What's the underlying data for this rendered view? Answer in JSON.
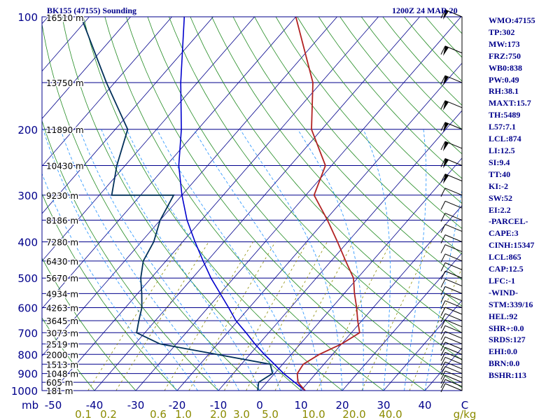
{
  "header": {
    "title_left": "BK155 (47155) Sounding",
    "title_right": "1200Z 24 MAR 20"
  },
  "params": [
    "WMO:47155",
    "TP:302",
    "MW:173",
    "FRZ:750",
    "WB0:838",
    "PW:0.49",
    "RH:38.1",
    "MAXT:15.7",
    "TH:5489",
    "L57:7.1",
    "LCL:874",
    "LI:12.5",
    "SI:9.4",
    "TT:40",
    "KI:-2",
    "SW:52",
    "EI:2.2",
    "-PARCEL-",
    "CAPE:3",
    "CINH:15347",
    "LCL:865",
    "CAP:12.5",
    "LFC:-1",
    "-WIND-",
    "STM:339/16",
    "HEL:92",
    "SHR+:0.0",
    "SRDS:127",
    "EHI:0.0",
    "BRN:0.0",
    "BSHR:113"
  ],
  "colors": {
    "isobar": "#00008b",
    "isotherm": "#00008b",
    "dry_adiabat": "#228b22",
    "moist_adiabat": "#1e90ff",
    "mixing_ratio": "#8b8b00",
    "temperature": "#b22222",
    "dewpoint": "#00305a",
    "parcel": "#0000cd"
  },
  "chart_data": {
    "type": "skew-t",
    "y_axis_unit": "mb",
    "x_axis_unit": "°C",
    "mixing_ratio_unit": "g/kg",
    "pressure_levels": [
      {
        "p": 100,
        "h": "16510 m",
        "label": "100"
      },
      {
        "p": 150,
        "h": "13750 m",
        "label": ""
      },
      {
        "p": 200,
        "h": "11890 m",
        "label": "200"
      },
      {
        "p": 250,
        "h": "10430 m",
        "label": ""
      },
      {
        "p": 300,
        "h": "9230 m",
        "label": "300"
      },
      {
        "p": 350,
        "h": "8186 m",
        "label": ""
      },
      {
        "p": 400,
        "h": "7280 m",
        "label": "400"
      },
      {
        "p": 450,
        "h": "6430 m",
        "label": ""
      },
      {
        "p": 500,
        "h": "5670 m",
        "label": "500"
      },
      {
        "p": 550,
        "h": "4934 m",
        "label": ""
      },
      {
        "p": 600,
        "h": "4263 m",
        "label": "600"
      },
      {
        "p": 650,
        "h": "3645 m",
        "label": ""
      },
      {
        "p": 700,
        "h": "3073 m",
        "label": "700"
      },
      {
        "p": 750,
        "h": "2519 m",
        "label": ""
      },
      {
        "p": 800,
        "h": "2000 m",
        "label": "800"
      },
      {
        "p": 850,
        "h": "1513 m",
        "label": ""
      },
      {
        "p": 900,
        "h": "1048 m",
        "label": "900"
      },
      {
        "p": 950,
        "h": "605 m",
        "label": ""
      },
      {
        "p": 1000,
        "h": "181 m",
        "label": "1000"
      }
    ],
    "temperature_ticks": [
      "-50",
      "-40",
      "-30",
      "-20",
      "-10",
      "0",
      "10",
      "20",
      "30",
      "40"
    ],
    "mixing_ratio_ticks": [
      "0.1",
      "0.2",
      "0.6",
      "1.0",
      "2.0",
      "3.0",
      "5.0",
      "10.0",
      "20.0",
      "40.0"
    ],
    "temperature_profile": [
      {
        "p": 1000,
        "t": 11.0
      },
      {
        "p": 950,
        "t": 7.5
      },
      {
        "p": 900,
        "t": 5.5
      },
      {
        "p": 850,
        "t": 5.0
      },
      {
        "p": 800,
        "t": 6.8
      },
      {
        "p": 750,
        "t": 10.0
      },
      {
        "p": 700,
        "t": 12.0
      },
      {
        "p": 650,
        "t": 9.0
      },
      {
        "p": 600,
        "t": 6.0
      },
      {
        "p": 550,
        "t": 2.5
      },
      {
        "p": 500,
        "t": -1.0
      },
      {
        "p": 450,
        "t": -6.5
      },
      {
        "p": 400,
        "t": -12.5
      },
      {
        "p": 350,
        "t": -19.5
      },
      {
        "p": 300,
        "t": -28.0
      },
      {
        "p": 250,
        "t": -31.5
      },
      {
        "p": 200,
        "t": -42.5
      },
      {
        "p": 150,
        "t": -52.0
      },
      {
        "p": 100,
        "t": -70.0
      }
    ],
    "dewpoint_profile": [
      {
        "p": 1000,
        "t": -0.5
      },
      {
        "p": 950,
        "t": -2.0
      },
      {
        "p": 900,
        "t": -0.5
      },
      {
        "p": 850,
        "t": -3.0
      },
      {
        "p": 800,
        "t": -18.0
      },
      {
        "p": 750,
        "t": -34.0
      },
      {
        "p": 700,
        "t": -42.0
      },
      {
        "p": 650,
        "t": -44.0
      },
      {
        "p": 600,
        "t": -46.0
      },
      {
        "p": 550,
        "t": -49.0
      },
      {
        "p": 500,
        "t": -52.5
      },
      {
        "p": 450,
        "t": -55.5
      },
      {
        "p": 400,
        "t": -57.0
      },
      {
        "p": 350,
        "t": -60.0
      },
      {
        "p": 300,
        "t": -62.0
      },
      {
        "p": 300,
        "t": -77.0
      },
      {
        "p": 250,
        "t": -82.0
      },
      {
        "p": 200,
        "t": -87.0
      },
      {
        "p": 150,
        "t": -102.0
      },
      {
        "p": 100,
        "t": -122.0
      }
    ],
    "parcel_profile": [
      {
        "p": 1000,
        "t": 11.0
      },
      {
        "p": 950,
        "t": 6.7
      },
      {
        "p": 900,
        "t": 2.2
      },
      {
        "p": 850,
        "t": -2.0
      },
      {
        "p": 800,
        "t": -6.5
      },
      {
        "p": 750,
        "t": -11.0
      },
      {
        "p": 700,
        "t": -15.5
      },
      {
        "p": 650,
        "t": -20.5
      },
      {
        "p": 600,
        "t": -25.0
      },
      {
        "p": 550,
        "t": -30.0
      },
      {
        "p": 500,
        "t": -35.5
      },
      {
        "p": 450,
        "t": -41.0
      },
      {
        "p": 400,
        "t": -47.0
      },
      {
        "p": 350,
        "t": -53.5
      },
      {
        "p": 300,
        "t": -60.0
      },
      {
        "p": 250,
        "t": -67.0
      },
      {
        "p": 200,
        "t": -74.0
      },
      {
        "p": 150,
        "t": -84.0
      },
      {
        "p": 100,
        "t": -97.0
      }
    ]
  }
}
